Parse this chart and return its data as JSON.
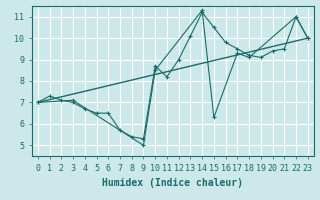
{
  "xlabel": "Humidex (Indice chaleur)",
  "bg_color": "#cce8e8",
  "grid_color": "#ffffff",
  "line_color": "#1a6b6b",
  "xlim": [
    -0.5,
    23.5
  ],
  "ylim": [
    4.5,
    11.5
  ],
  "xticks": [
    0,
    1,
    2,
    3,
    4,
    5,
    6,
    7,
    8,
    9,
    10,
    11,
    12,
    13,
    14,
    15,
    16,
    17,
    18,
    19,
    20,
    21,
    22,
    23
  ],
  "yticks": [
    5,
    6,
    7,
    8,
    9,
    10,
    11
  ],
  "line1_x": [
    0,
    1,
    2,
    3,
    4,
    5,
    6,
    7,
    8,
    9,
    10,
    11,
    12,
    13,
    14,
    15,
    16,
    17,
    18,
    19,
    20,
    21,
    22,
    23
  ],
  "line1_y": [
    7.0,
    7.3,
    7.1,
    7.0,
    6.7,
    6.5,
    6.5,
    5.7,
    5.4,
    5.3,
    8.7,
    8.2,
    9.0,
    10.1,
    11.2,
    10.5,
    9.8,
    9.5,
    9.2,
    9.1,
    9.4,
    9.5,
    11.0,
    10.0
  ],
  "line2_x": [
    0,
    3,
    9,
    10,
    14,
    15,
    17,
    18,
    22,
    23
  ],
  "line2_y": [
    7.0,
    7.1,
    5.0,
    8.5,
    11.3,
    6.3,
    9.3,
    9.1,
    11.0,
    10.0
  ],
  "line3_x": [
    0,
    23
  ],
  "line3_y": [
    7.0,
    10.0
  ],
  "xlabel_fontsize": 7,
  "tick_fontsize": 6
}
